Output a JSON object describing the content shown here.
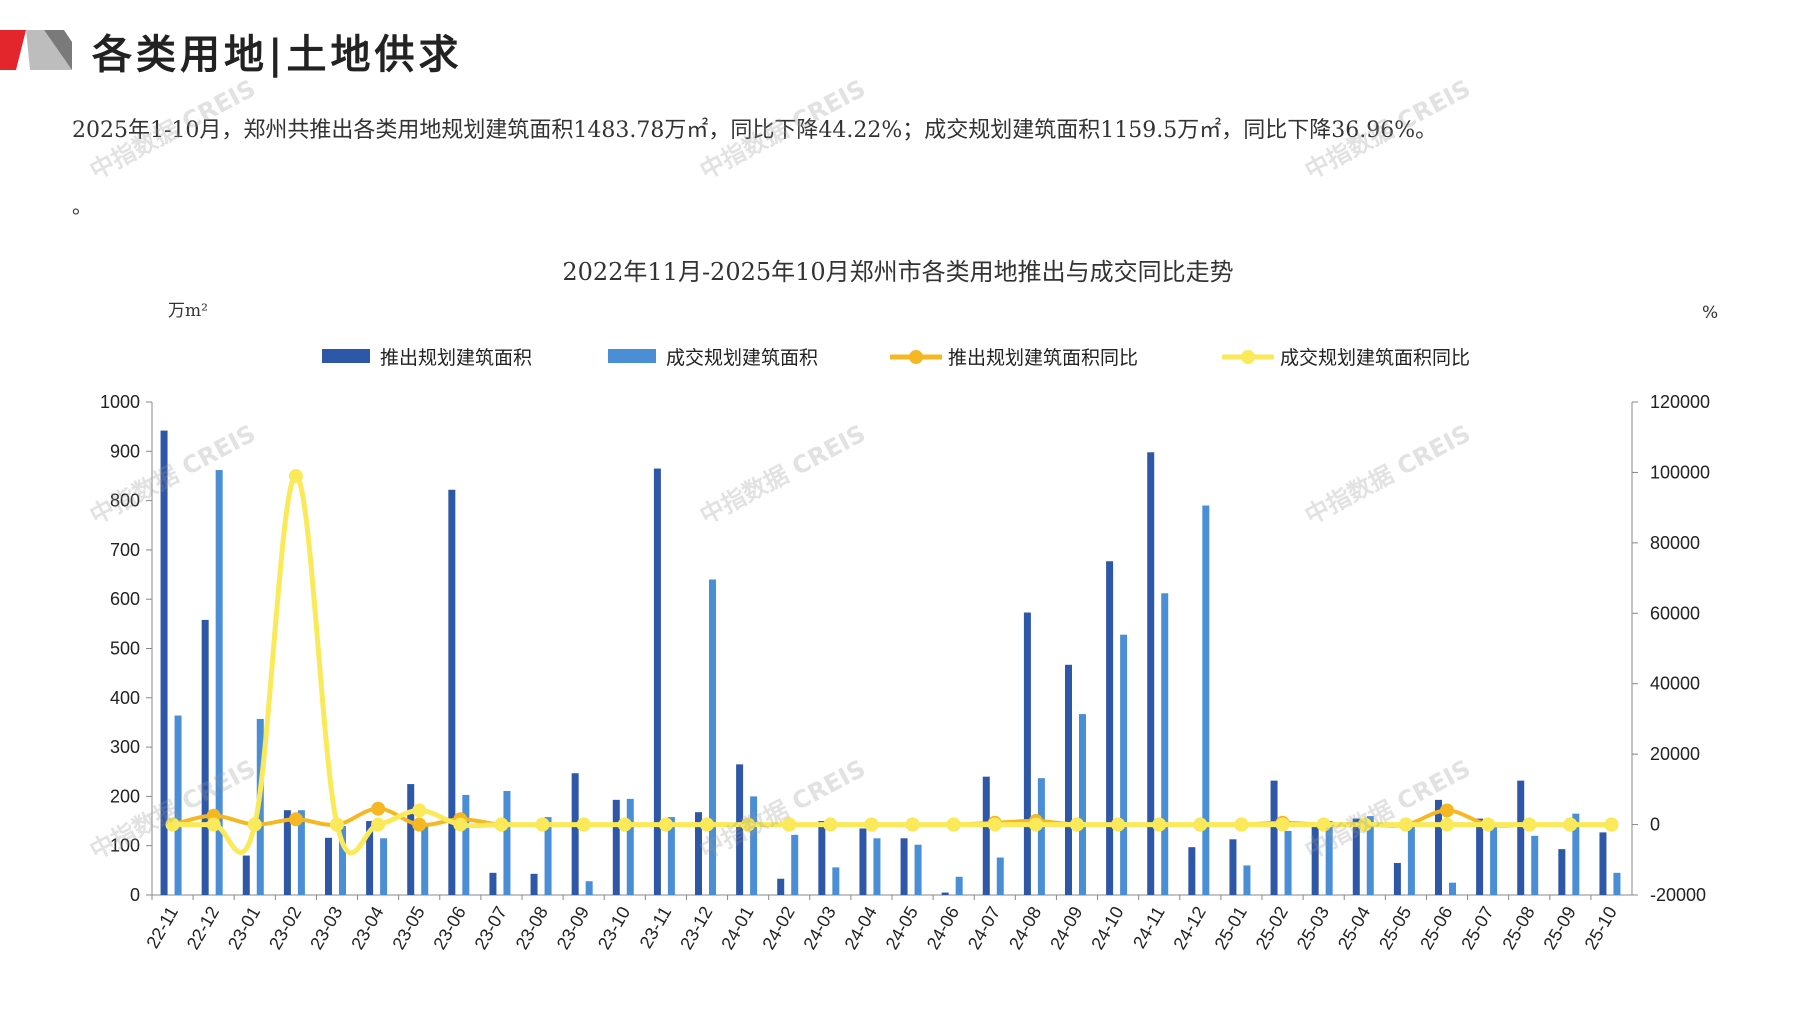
{
  "header": {
    "section_title": "各类用地|土地供求",
    "summary": "2025年1-10月，郑州共推出各类用地规划建筑面积1483.78万㎡，同比下降44.22%；成交规划建筑面积1159.5万㎡，同比下降36.96%。",
    "note_dot": "。"
  },
  "watermark": "中指数据 CREIS",
  "colors": {
    "supply_bar": "#2E57A7",
    "deal_bar": "#4A8ED6",
    "supply_yoy": "#F5B822",
    "deal_yoy": "#FAEA5A",
    "brand_red": "#E3262B"
  },
  "chart_data": {
    "type": "bar",
    "title": "2022年11月-2025年10月郑州市各类用地推出与成交同比走势",
    "y_left_unit": "万m²",
    "y_right_unit": "%",
    "ylim_left": [
      0,
      1000
    ],
    "ylim_right": [
      -20000,
      120000
    ],
    "y_left_ticks": [
      0,
      100,
      200,
      300,
      400,
      500,
      600,
      700,
      800,
      900,
      1000
    ],
    "y_right_ticks": [
      -20000,
      0,
      20000,
      40000,
      60000,
      80000,
      100000,
      120000
    ],
    "legend_position": "top",
    "categories": [
      "22-11",
      "22-12",
      "23-01",
      "23-02",
      "23-03",
      "23-04",
      "23-05",
      "23-06",
      "23-07",
      "23-08",
      "23-09",
      "23-10",
      "23-11",
      "23-12",
      "24-01",
      "24-02",
      "24-03",
      "24-04",
      "24-05",
      "24-06",
      "24-07",
      "24-08",
      "24-09",
      "24-10",
      "24-11",
      "24-12",
      "25-01",
      "25-02",
      "25-03",
      "25-04",
      "25-05",
      "25-06",
      "25-07",
      "25-08",
      "25-09",
      "25-10"
    ],
    "series": [
      {
        "name": "推出规划建筑面积",
        "type": "bar",
        "axis": "left",
        "values": [
          942,
          558,
          80,
          172,
          116,
          150,
          225,
          822,
          45,
          43,
          247,
          193,
          865,
          168,
          265,
          33,
          150,
          135,
          115,
          5,
          240,
          573,
          467,
          677,
          898,
          97,
          113,
          232,
          140,
          155,
          65,
          193,
          155,
          232,
          93,
          127
        ]
      },
      {
        "name": "成交规划建筑面积",
        "type": "bar",
        "axis": "left",
        "values": [
          364,
          862,
          357,
          172,
          140,
          115,
          140,
          203,
          211,
          158,
          28,
          195,
          158,
          640,
          200,
          122,
          56,
          115,
          102,
          37,
          76,
          237,
          367,
          528,
          612,
          790,
          60,
          130,
          150,
          160,
          145,
          25,
          140,
          120,
          165,
          45
        ]
      },
      {
        "name": "推出规划建筑面积同比",
        "type": "line",
        "axis": "right",
        "values": [
          0,
          2500,
          0,
          1500,
          0,
          4500,
          0,
          1500,
          0,
          0,
          0,
          0,
          0,
          0,
          0,
          0,
          0,
          0,
          0,
          0,
          500,
          1000,
          0,
          0,
          0,
          0,
          0,
          500,
          0,
          0,
          0,
          4000,
          0,
          0,
          0,
          0
        ]
      },
      {
        "name": "成交规划建筑面积同比",
        "type": "line",
        "axis": "right",
        "values": [
          0,
          0,
          0,
          99000,
          0,
          0,
          4000,
          0,
          0,
          0,
          0,
          0,
          0,
          0,
          0,
          0,
          0,
          0,
          0,
          0,
          0,
          0,
          0,
          0,
          0,
          0,
          0,
          0,
          0,
          0,
          0,
          0,
          0,
          0,
          0,
          0
        ]
      }
    ]
  }
}
